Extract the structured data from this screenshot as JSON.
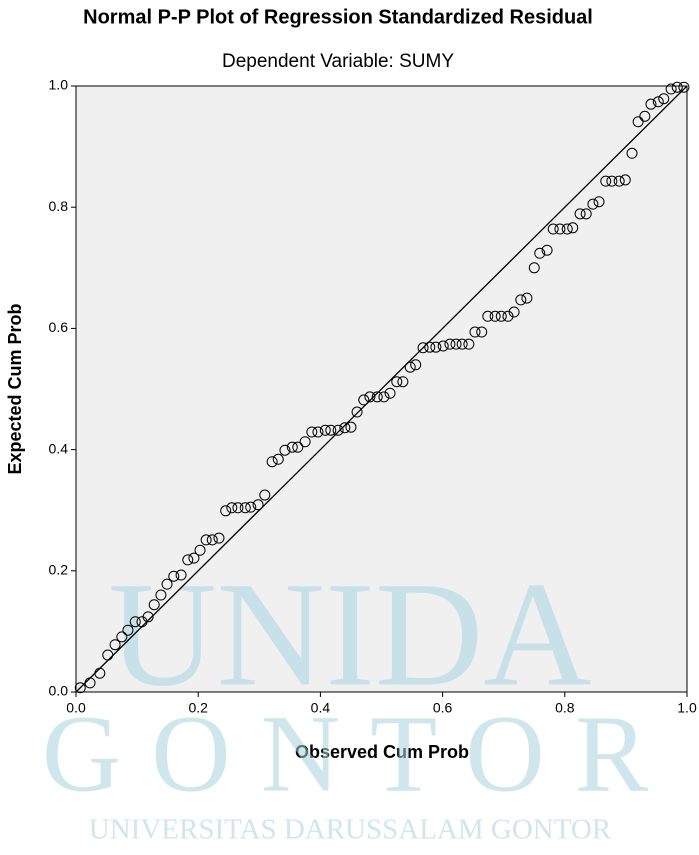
{
  "chart_data": {
    "type": "scatter",
    "title": "Normal P-P Plot of Regression Standardized Residual",
    "subtitle": "Dependent Variable: SUMY",
    "x_label": "Observed Cum Prob",
    "y_label": "Expected Cum Prob",
    "xlim": [
      0,
      1
    ],
    "ylim": [
      0,
      1
    ],
    "xticks": [
      {
        "value": 0,
        "label": "0.0"
      },
      0.2,
      0.4,
      0.6,
      0.8,
      {
        "value": 1,
        "label": "1.0"
      }
    ],
    "yticks": [
      {
        "value": 0,
        "label": "0.0"
      },
      0.2,
      0.4,
      0.6,
      0.8,
      {
        "value": 1,
        "label": "1.0"
      }
    ],
    "reference_line": true,
    "color": "#000000",
    "x": [
      0.007,
      0.023,
      0.039,
      0.052,
      0.064,
      0.075,
      0.085,
      0.097,
      0.108,
      0.118,
      0.128,
      0.139,
      0.149,
      0.16,
      0.172,
      0.183,
      0.193,
      0.203,
      0.213,
      0.223,
      0.234,
      0.245,
      0.255,
      0.265,
      0.277,
      0.286,
      0.298,
      0.309,
      0.321,
      0.331,
      0.342,
      0.354,
      0.363,
      0.375,
      0.386,
      0.396,
      0.408,
      0.417,
      0.429,
      0.44,
      0.45,
      0.46,
      0.471,
      0.481,
      0.493,
      0.504,
      0.514,
      0.525,
      0.535,
      0.547,
      0.556,
      0.568,
      0.579,
      0.589,
      0.601,
      0.612,
      0.622,
      0.632,
      0.643,
      0.653,
      0.664,
      0.674,
      0.686,
      0.696,
      0.707,
      0.717,
      0.728,
      0.738,
      0.75,
      0.759,
      0.771,
      0.781,
      0.792,
      0.804,
      0.813,
      0.825,
      0.835,
      0.846,
      0.856,
      0.867,
      0.877,
      0.889,
      0.899,
      0.91,
      0.92,
      0.931,
      0.941,
      0.953,
      0.962,
      0.974,
      0.984,
      0.995
    ],
    "values": [
      0.007,
      0.015,
      0.031,
      0.061,
      0.078,
      0.091,
      0.102,
      0.116,
      0.116,
      0.124,
      0.144,
      0.16,
      0.178,
      0.191,
      0.193,
      0.218,
      0.221,
      0.234,
      0.251,
      0.251,
      0.254,
      0.299,
      0.304,
      0.304,
      0.304,
      0.305,
      0.309,
      0.325,
      0.38,
      0.384,
      0.399,
      0.404,
      0.404,
      0.413,
      0.429,
      0.429,
      0.432,
      0.432,
      0.432,
      0.436,
      0.437,
      0.462,
      0.482,
      0.487,
      0.487,
      0.487,
      0.493,
      0.512,
      0.512,
      0.536,
      0.54,
      0.568,
      0.569,
      0.569,
      0.571,
      0.574,
      0.574,
      0.574,
      0.574,
      0.594,
      0.594,
      0.62,
      0.62,
      0.62,
      0.62,
      0.627,
      0.647,
      0.65,
      0.7,
      0.724,
      0.729,
      0.764,
      0.764,
      0.764,
      0.766,
      0.789,
      0.789,
      0.805,
      0.809,
      0.843,
      0.843,
      0.843,
      0.845,
      0.889,
      0.941,
      0.95,
      0.97,
      0.974,
      0.979,
      0.995,
      0.998,
      0.998
    ],
    "watermark": [
      "UNIDA",
      "GONTOR",
      "UNIVERSITAS DARUSSALAM GONTOR"
    ]
  }
}
